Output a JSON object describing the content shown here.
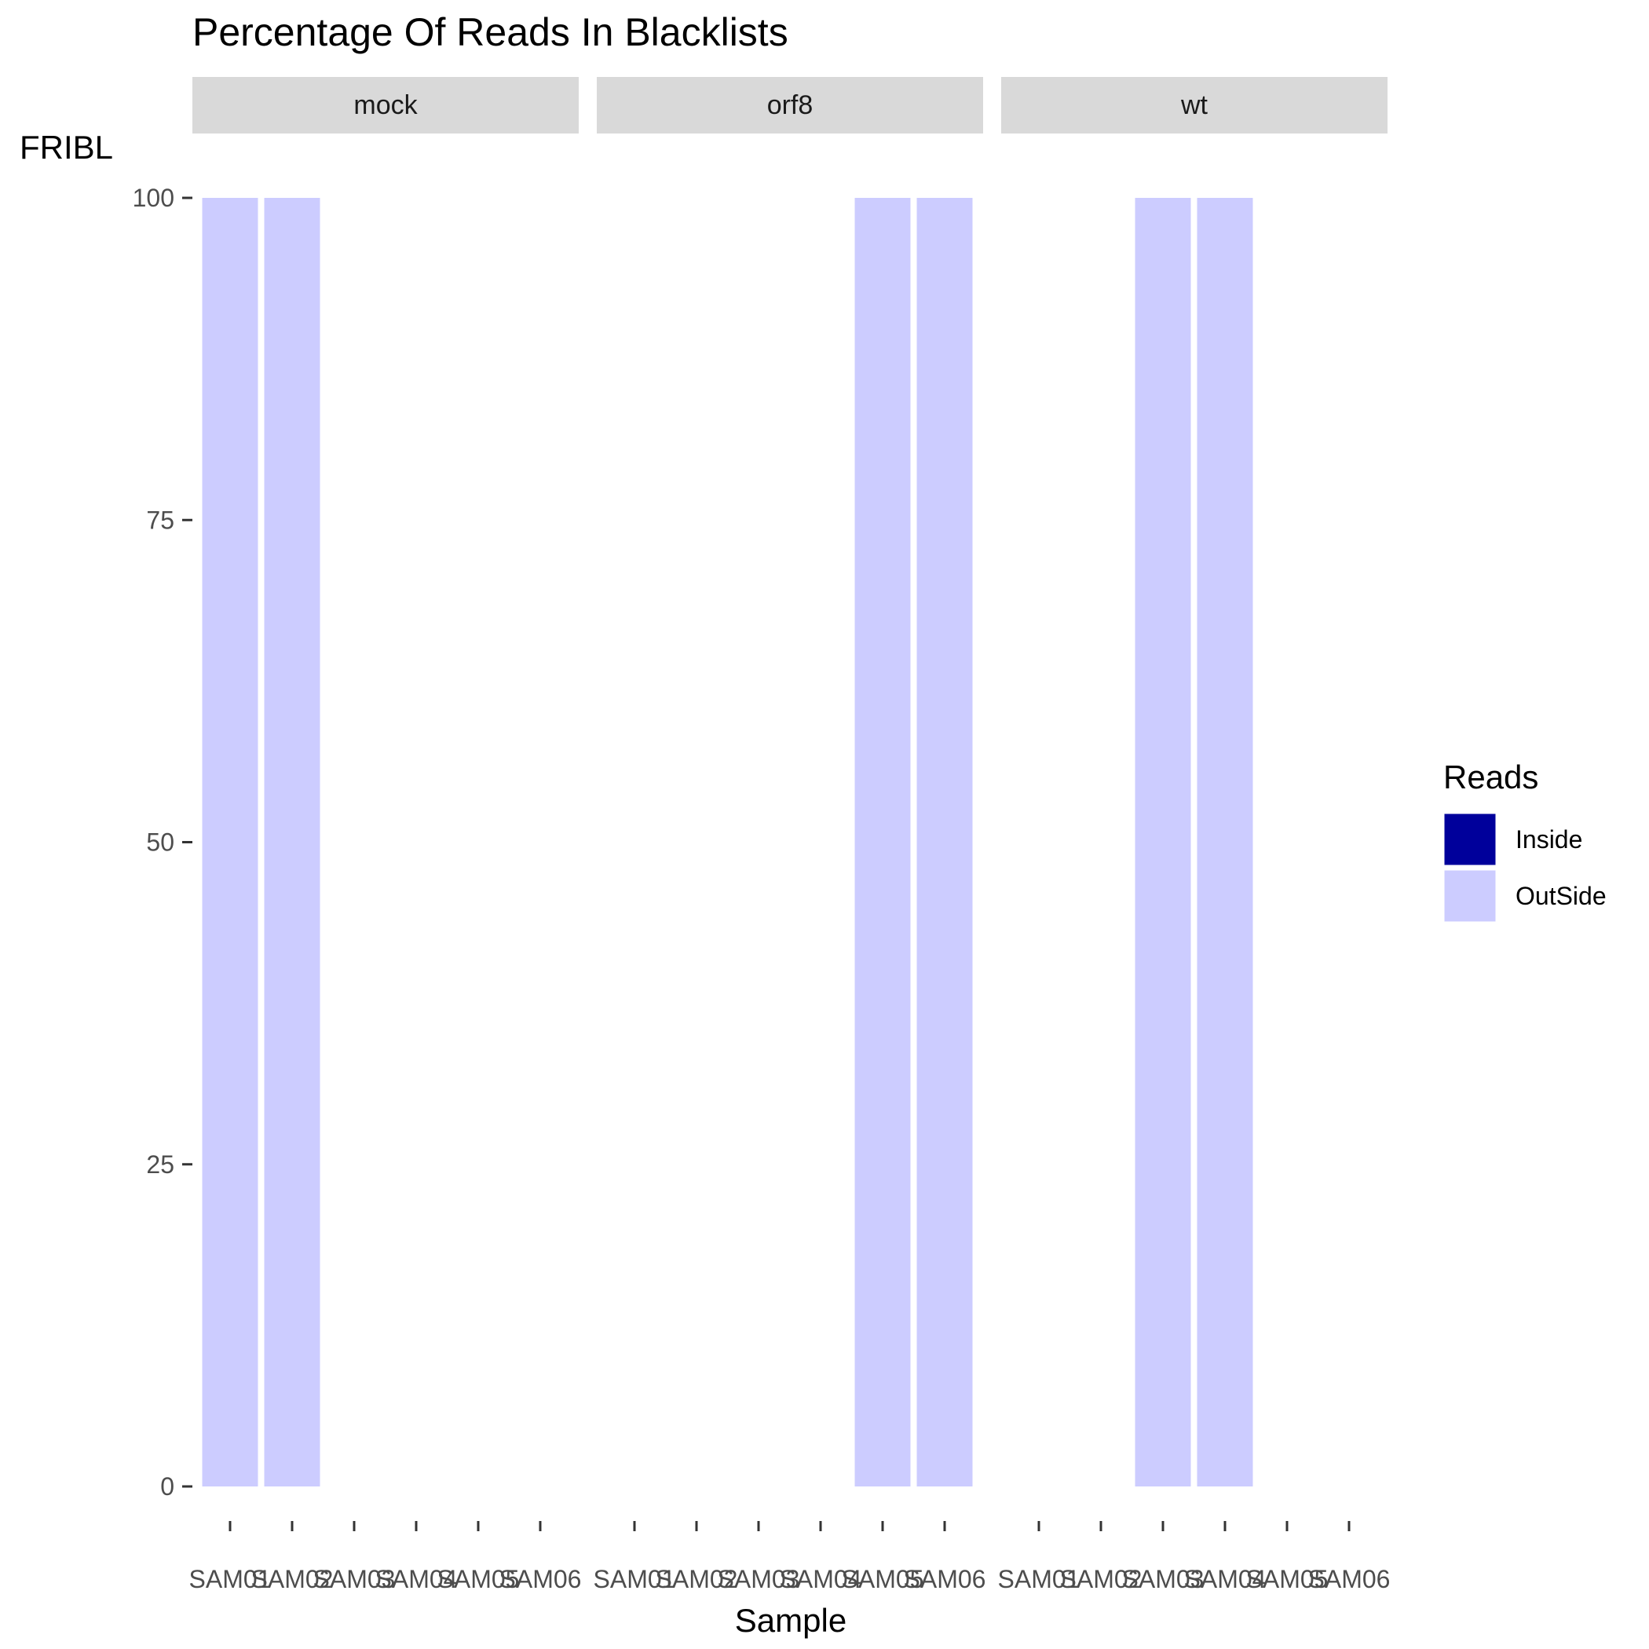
{
  "chart_data": {
    "type": "bar",
    "stacked": true,
    "title": "Percentage Of Reads In Blacklists",
    "xlabel": "Sample",
    "ylabel": "FRIBL",
    "ylim": [
      0,
      100
    ],
    "yticks": [
      "0",
      "25",
      "50",
      "75",
      "100"
    ],
    "categories": [
      "SAM01",
      "SAM02",
      "SAM03",
      "SAM04",
      "SAM05",
      "SAM06"
    ],
    "legend": {
      "title": "Reads",
      "position": "right",
      "entries": [
        {
          "name": "Inside",
          "color": "#00009b"
        },
        {
          "name": "OutSide",
          "color": "#ccccff"
        }
      ]
    },
    "panels": [
      {
        "name": "mock",
        "series": [
          {
            "name": "Inside",
            "values": [
              0,
              0,
              null,
              null,
              null,
              null
            ]
          },
          {
            "name": "OutSide",
            "values": [
              100,
              100,
              null,
              null,
              null,
              null
            ]
          }
        ]
      },
      {
        "name": "orf8",
        "series": [
          {
            "name": "Inside",
            "values": [
              null,
              null,
              null,
              null,
              0,
              0
            ]
          },
          {
            "name": "OutSide",
            "values": [
              null,
              null,
              null,
              null,
              100,
              100
            ]
          }
        ]
      },
      {
        "name": "wt",
        "series": [
          {
            "name": "Inside",
            "values": [
              null,
              null,
              0,
              0,
              null,
              null
            ]
          },
          {
            "name": "OutSide",
            "values": [
              null,
              null,
              100,
              100,
              null,
              null
            ]
          }
        ]
      }
    ]
  },
  "colors": {
    "strip_background": "#d9d9d9",
    "tick_color": "#333333",
    "axis_text": "#4d4d4d"
  }
}
